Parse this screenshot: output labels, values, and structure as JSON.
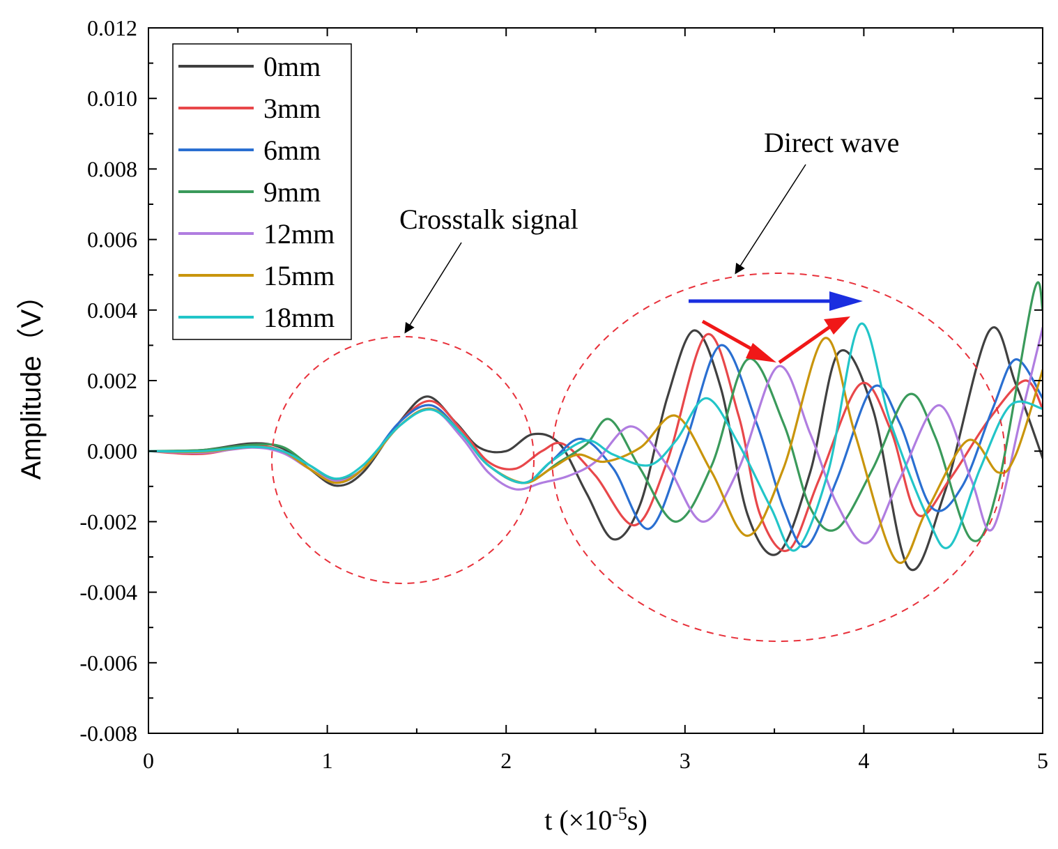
{
  "chart_data": {
    "type": "line",
    "title": "",
    "xlabel": "t (×10",
    "xlabel_exp": "-5",
    "xlabel_tail": "s)",
    "ylabel": "Amplitude（V）",
    "xlim": [
      0,
      5
    ],
    "ylim": [
      -0.008,
      0.012
    ],
    "xticks": [
      0,
      1,
      2,
      3,
      4,
      5
    ],
    "xtick_labels": [
      "0",
      "1",
      "2",
      "3",
      "4",
      "5"
    ],
    "yticks": [
      -0.008,
      -0.006,
      -0.004,
      -0.002,
      0.0,
      0.002,
      0.004,
      0.006,
      0.008,
      0.01,
      0.012
    ],
    "ytick_labels": [
      "-0.008",
      "-0.006",
      "-0.004",
      "-0.002",
      "0.000",
      "0.002",
      "0.004",
      "0.006",
      "0.008",
      "0.010",
      "0.012"
    ],
    "grid": false,
    "legend_position": "top-left",
    "series": [
      {
        "name": "0mm",
        "color": "#404040",
        "points": [
          [
            0,
            0
          ],
          [
            0.3,
            3e-05
          ],
          [
            0.58,
            0.00022
          ],
          [
            0.75,
            8e-05
          ],
          [
            0.9,
            -0.0005
          ],
          [
            1.05,
            -0.00098
          ],
          [
            1.2,
            -0.0006
          ],
          [
            1.4,
            0.0008
          ],
          [
            1.56,
            0.00155
          ],
          [
            1.72,
            0.0008
          ],
          [
            1.85,
            0.0001
          ],
          [
            2.0,
            0.0
          ],
          [
            2.15,
            0.00048
          ],
          [
            2.3,
            0.0002
          ],
          [
            2.45,
            -0.0012
          ],
          [
            2.6,
            -0.0025
          ],
          [
            2.75,
            -0.0015
          ],
          [
            2.9,
            0.0015
          ],
          [
            3.05,
            0.00342
          ],
          [
            3.2,
            0.0018
          ],
          [
            3.35,
            -0.0018
          ],
          [
            3.52,
            -0.0029
          ],
          [
            3.7,
            -0.0006
          ],
          [
            3.86,
            0.0028
          ],
          [
            4.05,
            0.0012
          ],
          [
            4.25,
            -0.0033
          ],
          [
            4.45,
            -0.0012
          ],
          [
            4.7,
            0.0034
          ],
          [
            4.85,
            0.0019
          ],
          [
            5.0,
            -0.0002
          ]
        ]
      },
      {
        "name": "3mm",
        "color": "#e8474a",
        "points": [
          [
            0,
            0
          ],
          [
            0.3,
            -8e-05
          ],
          [
            0.58,
            0.00015
          ],
          [
            0.75,
            0.0
          ],
          [
            0.9,
            -0.0005
          ],
          [
            1.05,
            -0.0009
          ],
          [
            1.2,
            -0.0005
          ],
          [
            1.4,
            0.0008
          ],
          [
            1.58,
            0.00142
          ],
          [
            1.75,
            0.0006
          ],
          [
            1.9,
            -0.0003
          ],
          [
            2.05,
            -0.0005
          ],
          [
            2.2,
            0.0
          ],
          [
            2.32,
            0.0002
          ],
          [
            2.5,
            -0.0007
          ],
          [
            2.72,
            -0.0021
          ],
          [
            2.9,
            -0.0003
          ],
          [
            3.12,
            0.0033
          ],
          [
            3.3,
            0.001
          ],
          [
            3.42,
            -0.0018
          ],
          [
            3.58,
            -0.0028
          ],
          [
            3.75,
            -0.0008
          ],
          [
            3.98,
            0.0019
          ],
          [
            4.15,
            0.0006
          ],
          [
            4.3,
            -0.0018
          ],
          [
            4.48,
            -0.0008
          ],
          [
            4.7,
            0.0009
          ],
          [
            4.9,
            0.002
          ],
          [
            5.0,
            0.0012
          ]
        ]
      },
      {
        "name": "6mm",
        "color": "#2a6fd1",
        "points": [
          [
            0,
            0
          ],
          [
            0.3,
            0.0
          ],
          [
            0.58,
            0.00012
          ],
          [
            0.75,
            0.0
          ],
          [
            0.9,
            -0.0005
          ],
          [
            1.05,
            -0.0009
          ],
          [
            1.2,
            -0.0005
          ],
          [
            1.4,
            0.0008
          ],
          [
            1.58,
            0.0013
          ],
          [
            1.75,
            0.0005
          ],
          [
            1.9,
            -0.0004
          ],
          [
            2.1,
            -0.0009
          ],
          [
            2.25,
            -0.0003
          ],
          [
            2.42,
            0.00035
          ],
          [
            2.6,
            -0.0005
          ],
          [
            2.8,
            -0.0022
          ],
          [
            3.0,
            0.0002
          ],
          [
            3.2,
            0.003
          ],
          [
            3.4,
            0.0008
          ],
          [
            3.55,
            -0.0016
          ],
          [
            3.68,
            -0.0027
          ],
          [
            3.85,
            -0.0008
          ],
          [
            4.05,
            0.0018
          ],
          [
            4.2,
            0.0008
          ],
          [
            4.38,
            -0.0016
          ],
          [
            4.55,
            -0.001
          ],
          [
            4.72,
            0.0012
          ],
          [
            4.85,
            0.0026
          ],
          [
            5.0,
            0.0015
          ]
        ]
      },
      {
        "name": "9mm",
        "color": "#3a9a5b",
        "points": [
          [
            0,
            0
          ],
          [
            0.3,
            3e-05
          ],
          [
            0.58,
            0.00018
          ],
          [
            0.75,
            0.00012
          ],
          [
            0.9,
            -0.0004
          ],
          [
            1.05,
            -0.0008
          ],
          [
            1.2,
            -0.0005
          ],
          [
            1.4,
            0.0007
          ],
          [
            1.58,
            0.0012
          ],
          [
            1.75,
            0.0005
          ],
          [
            1.9,
            -0.0004
          ],
          [
            2.1,
            -0.0009
          ],
          [
            2.3,
            -0.0003
          ],
          [
            2.45,
            0.0002
          ],
          [
            2.58,
            0.0009
          ],
          [
            2.75,
            -0.0005
          ],
          [
            2.95,
            -0.002
          ],
          [
            3.15,
            -0.0004
          ],
          [
            3.35,
            0.0026
          ],
          [
            3.55,
            0.0008
          ],
          [
            3.7,
            -0.0016
          ],
          [
            3.85,
            -0.0022
          ],
          [
            4.05,
            -0.0005
          ],
          [
            4.25,
            0.0016
          ],
          [
            4.4,
            0.0004
          ],
          [
            4.6,
            -0.0025
          ],
          [
            4.75,
            -0.001
          ],
          [
            4.95,
            0.0045
          ],
          [
            5.0,
            0.004
          ]
        ]
      },
      {
        "name": "12mm",
        "color": "#b07de0",
        "points": [
          [
            0,
            0
          ],
          [
            0.3,
            -5e-05
          ],
          [
            0.58,
            0.0001
          ],
          [
            0.75,
            -5e-05
          ],
          [
            0.9,
            -0.0005
          ],
          [
            1.05,
            -0.00085
          ],
          [
            1.2,
            -0.0005
          ],
          [
            1.4,
            0.0007
          ],
          [
            1.58,
            0.0012
          ],
          [
            1.75,
            0.0004
          ],
          [
            1.9,
            -0.0006
          ],
          [
            2.05,
            -0.00108
          ],
          [
            2.2,
            -0.0009
          ],
          [
            2.35,
            -0.0007
          ],
          [
            2.5,
            -0.0003
          ],
          [
            2.7,
            0.0007
          ],
          [
            2.9,
            -0.0004
          ],
          [
            3.1,
            -0.002
          ],
          [
            3.3,
            -0.0005
          ],
          [
            3.52,
            0.0024
          ],
          [
            3.7,
            0.0005
          ],
          [
            3.85,
            -0.0015
          ],
          [
            4.02,
            -0.0026
          ],
          [
            4.2,
            -0.0008
          ],
          [
            4.42,
            0.0013
          ],
          [
            4.6,
            -0.0008
          ],
          [
            4.72,
            -0.0022
          ],
          [
            4.88,
            0.001
          ],
          [
            5.0,
            0.0035
          ]
        ]
      },
      {
        "name": "15mm",
        "color": "#c9950c",
        "points": [
          [
            0,
            0
          ],
          [
            0.3,
            -2e-05
          ],
          [
            0.58,
            0.00012
          ],
          [
            0.75,
            0.0
          ],
          [
            0.9,
            -0.0005
          ],
          [
            1.05,
            -0.0009
          ],
          [
            1.2,
            -0.0005
          ],
          [
            1.4,
            0.0007
          ],
          [
            1.58,
            0.0012
          ],
          [
            1.75,
            0.0005
          ],
          [
            1.9,
            -0.0004
          ],
          [
            2.1,
            -0.0009
          ],
          [
            2.25,
            -0.0005
          ],
          [
            2.4,
            -0.0001
          ],
          [
            2.55,
            -0.0003
          ],
          [
            2.75,
            0.0001
          ],
          [
            2.95,
            0.001
          ],
          [
            3.15,
            -0.0006
          ],
          [
            3.35,
            -0.0024
          ],
          [
            3.55,
            -0.0005
          ],
          [
            3.78,
            0.0032
          ],
          [
            3.95,
            0.0005
          ],
          [
            4.18,
            -0.0031
          ],
          [
            4.35,
            -0.0017
          ],
          [
            4.58,
            0.0003
          ],
          [
            4.75,
            -0.0006
          ],
          [
            4.85,
            -0.0001
          ],
          [
            5.0,
            0.0023
          ]
        ]
      },
      {
        "name": "18mm",
        "color": "#22c5c8",
        "points": [
          [
            0,
            0
          ],
          [
            0.3,
            0.0
          ],
          [
            0.58,
            0.00012
          ],
          [
            0.75,
            0.0
          ],
          [
            0.9,
            -0.0004
          ],
          [
            1.05,
            -0.00078
          ],
          [
            1.2,
            -0.0004
          ],
          [
            1.4,
            0.0007
          ],
          [
            1.58,
            0.00118
          ],
          [
            1.75,
            0.0005
          ],
          [
            1.9,
            -0.0004
          ],
          [
            2.1,
            -0.0009
          ],
          [
            2.25,
            -0.0003
          ],
          [
            2.45,
            0.0003
          ],
          [
            2.6,
            -0.0001
          ],
          [
            2.8,
            -0.0004
          ],
          [
            2.95,
            0.0003
          ],
          [
            3.12,
            0.0015
          ],
          [
            3.3,
            0.0002
          ],
          [
            3.48,
            -0.0016
          ],
          [
            3.62,
            -0.0028
          ],
          [
            3.8,
            -0.0006
          ],
          [
            3.98,
            0.0036
          ],
          [
            4.15,
            0.0008
          ],
          [
            4.35,
            -0.0018
          ],
          [
            4.48,
            -0.0027
          ],
          [
            4.65,
            -0.0005
          ],
          [
            4.82,
            0.0013
          ],
          [
            5.0,
            0.0012
          ]
        ]
      }
    ],
    "annotations": [
      {
        "text": "Crosstalk signal",
        "kind": "dashed-ellipse-label"
      },
      {
        "text": "Direct wave",
        "kind": "dashed-ellipse-label"
      }
    ]
  }
}
